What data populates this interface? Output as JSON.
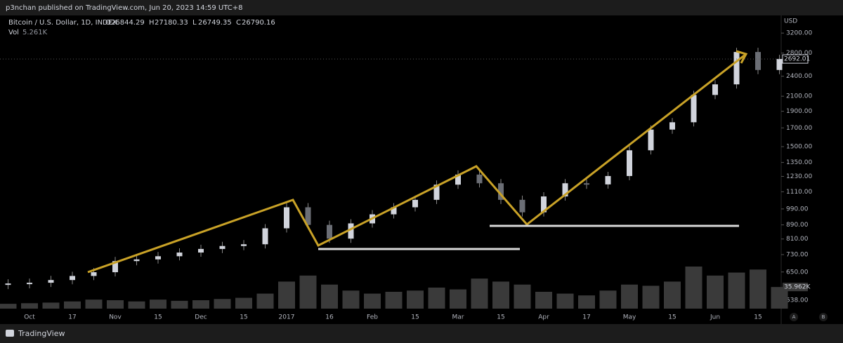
{
  "header": {
    "publisher": "p3nchan published on TradingView.com, Jun 20, 2023 14:59 UTC+8",
    "symbol": "Bitcoin / U.S. Dollar, 1D, INDEX",
    "ohlc": [
      {
        "label": "O",
        "value": 26844.29
      },
      {
        "label": "H",
        "value": 27180.33
      },
      {
        "label": "L",
        "value": 26749.35
      },
      {
        "label": "C",
        "value": 26790.16
      }
    ],
    "volume_label": "Vol",
    "volume_value": "5.261K"
  },
  "chart_data": {
    "type": "candlestick",
    "currency": "USD",
    "categories": [
      null,
      "Oct",
      null,
      "17",
      null,
      "Nov",
      null,
      "15",
      null,
      "Dec",
      null,
      "15",
      null,
      "2017",
      null,
      "16",
      null,
      "Feb",
      null,
      "15",
      null,
      "Mar",
      null,
      "15",
      null,
      "Apr",
      null,
      "17",
      null,
      "May",
      null,
      "15",
      null,
      "Jun",
      null,
      "15",
      null
    ],
    "series": [
      {
        "name": "Bitcoin / U.S. Dollar",
        "color": "#d1d4dc",
        "values": [
          602,
          605,
          616,
          633,
          649,
          699,
          707,
          722,
          740,
          758,
          773,
          782,
          870,
          1001,
          890,
          812,
          899,
          955,
          1001,
          1052,
          1164,
          1245,
          1175,
          1052,
          968,
          1076,
          1175,
          1166,
          1233,
          1464,
          1681,
          1765,
          2118,
          2273,
          2821,
          2502,
          2692.01
        ]
      },
      {
        "name": "Vol",
        "color": "#3a3a3a",
        "axis": "volume",
        "values": [
          8,
          9,
          10,
          12,
          15,
          14,
          12,
          15,
          13,
          14,
          16,
          18,
          25,
          45,
          55,
          40,
          30,
          25,
          28,
          30,
          35,
          32,
          50,
          45,
          40,
          28,
          25,
          22,
          30,
          40,
          38,
          45,
          70,
          55,
          60,
          65,
          35.962
        ]
      }
    ],
    "last_price": 2692.01,
    "last_volume": {
      "value": 35.962,
      "label": "35.962K"
    },
    "log_scale": true,
    "ylim": [
      509,
      3600
    ],
    "yticks": [
      {
        "value": 3200,
        "label": "3200.00"
      },
      {
        "value": 2800,
        "label": "2800.00"
      },
      {
        "value": 2400,
        "label": "2400.00"
      },
      {
        "value": 2100,
        "label": "2100.00"
      },
      {
        "value": 1900,
        "label": "1900.00"
      },
      {
        "value": 1700,
        "label": "1700.00"
      },
      {
        "value": 1500,
        "label": "1500.00"
      },
      {
        "value": 1350,
        "label": "1350.00"
      },
      {
        "value": 1230,
        "label": "1230.00"
      },
      {
        "value": 1110,
        "label": "1110.00"
      },
      {
        "value": 990,
        "label": "990.00"
      },
      {
        "value": 890,
        "label": "890.00"
      },
      {
        "value": 810,
        "label": "810.00"
      },
      {
        "value": 730,
        "label": "730.00"
      },
      {
        "value": 650,
        "label": "650.00"
      },
      {
        "value": 538,
        "label": "538.00"
      }
    ],
    "scale_buttons": [
      "A",
      "B"
    ]
  },
  "footer": {
    "brand": "TradingView"
  }
}
